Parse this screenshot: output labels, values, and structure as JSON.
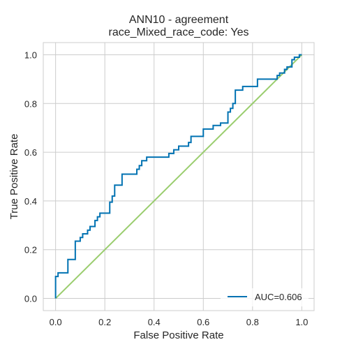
{
  "chart_data": {
    "type": "line",
    "title": "ANN10 - agreement",
    "subtitle": "race_Mixed_race_code: Yes",
    "xlabel": "False Positive Rate",
    "ylabel": "True Positive Rate",
    "xlim": [
      -0.05,
      1.05
    ],
    "ylim": [
      -0.05,
      1.05
    ],
    "xticks": [
      "0.0",
      "0.2",
      "0.4",
      "0.6",
      "0.8",
      "1.0"
    ],
    "yticks": [
      "0.0",
      "0.2",
      "0.4",
      "0.6",
      "0.8",
      "1.0"
    ],
    "grid": true,
    "legend_position": "lower-right",
    "colors": {
      "roc": "#0072b2",
      "diagonal": "#9acd6e",
      "grid": "#cccccc",
      "frame": "#cccccc"
    },
    "series": [
      {
        "name": "AUC=0.606",
        "x": [
          0.0,
          0.0,
          0.01,
          0.01,
          0.05,
          0.05,
          0.08,
          0.08,
          0.1,
          0.1,
          0.11,
          0.11,
          0.13,
          0.13,
          0.14,
          0.14,
          0.16,
          0.16,
          0.17,
          0.17,
          0.18,
          0.18,
          0.22,
          0.22,
          0.23,
          0.23,
          0.24,
          0.24,
          0.27,
          0.27,
          0.33,
          0.33,
          0.34,
          0.34,
          0.35,
          0.35,
          0.37,
          0.37,
          0.46,
          0.46,
          0.48,
          0.48,
          0.5,
          0.5,
          0.54,
          0.54,
          0.55,
          0.55,
          0.6,
          0.6,
          0.64,
          0.64,
          0.67,
          0.67,
          0.7,
          0.7,
          0.71,
          0.71,
          0.72,
          0.72,
          0.73,
          0.73,
          0.76,
          0.76,
          0.82,
          0.82,
          0.9,
          0.9,
          0.91,
          0.91,
          0.93,
          0.93,
          0.94,
          0.94,
          0.96,
          0.96,
          0.97,
          0.97,
          0.99,
          0.99,
          1.0
        ],
        "y": [
          0.0,
          0.09,
          0.09,
          0.105,
          0.105,
          0.16,
          0.16,
          0.235,
          0.235,
          0.25,
          0.25,
          0.265,
          0.265,
          0.28,
          0.28,
          0.295,
          0.295,
          0.32,
          0.32,
          0.335,
          0.335,
          0.35,
          0.35,
          0.395,
          0.395,
          0.42,
          0.42,
          0.465,
          0.465,
          0.51,
          0.51,
          0.53,
          0.53,
          0.545,
          0.545,
          0.565,
          0.565,
          0.58,
          0.58,
          0.595,
          0.595,
          0.61,
          0.61,
          0.625,
          0.625,
          0.64,
          0.64,
          0.665,
          0.665,
          0.695,
          0.695,
          0.71,
          0.71,
          0.72,
          0.72,
          0.765,
          0.765,
          0.78,
          0.78,
          0.8,
          0.8,
          0.855,
          0.855,
          0.87,
          0.87,
          0.9,
          0.9,
          0.915,
          0.915,
          0.925,
          0.925,
          0.94,
          0.94,
          0.95,
          0.95,
          0.98,
          0.98,
          0.99,
          0.99,
          1.0,
          1.0
        ]
      },
      {
        "x": [
          0.0,
          1.0
        ],
        "y": [
          0.0,
          1.0
        ]
      }
    ]
  }
}
